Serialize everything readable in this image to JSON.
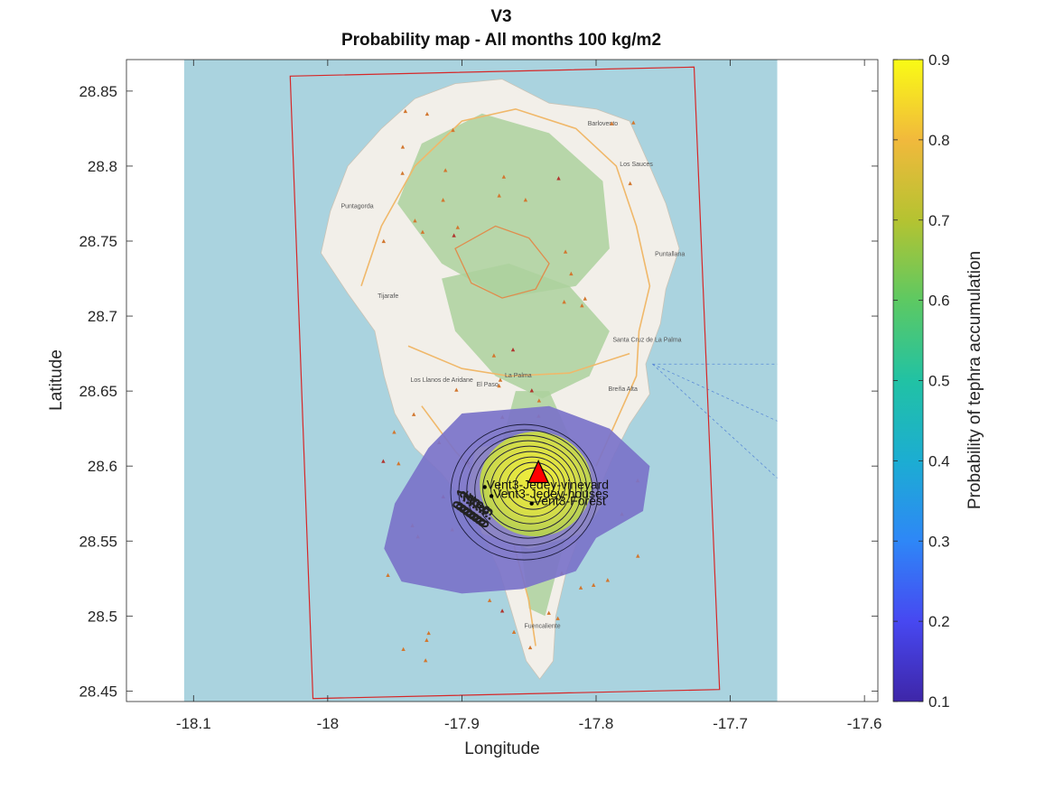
{
  "figure": {
    "title_line1": "V3",
    "title_line2": "Probability map - All months 100 kg/m2"
  },
  "axes": {
    "xlabel": "Longitude",
    "ylabel": "Latitude",
    "xlim": [
      -18.15,
      -17.59
    ],
    "ylim": [
      28.443,
      28.871
    ],
    "xticks": [
      -18.1,
      -18,
      -17.9,
      -17.8,
      -17.7,
      -17.6
    ],
    "xtick_labels": [
      "-18.1",
      "-18",
      "-17.9",
      "-17.8",
      "-17.7",
      "-17.6"
    ],
    "yticks": [
      28.45,
      28.5,
      28.55,
      28.6,
      28.65,
      28.7,
      28.75,
      28.8,
      28.85
    ],
    "ytick_labels": [
      "28.45",
      "28.5",
      "28.55",
      "28.6",
      "28.65",
      "28.7",
      "28.75",
      "28.8",
      "28.85"
    ],
    "grid": false
  },
  "basemap": {
    "sea_color": "#aad3df",
    "land_color": "#f2efe9",
    "forest_color": "#add19e",
    "road_color": "#f0b86a",
    "sea_extent_lon": [
      -18.107,
      -17.665
    ],
    "town_labels": [
      {
        "text": "Santa Cruz de La Palma",
        "lon": -17.762,
        "lat": 28.683
      },
      {
        "text": "Los Llanos de Aridane",
        "lon": -17.915,
        "lat": 28.656
      },
      {
        "text": "La Palma",
        "lon": -17.858,
        "lat": 28.659
      },
      {
        "text": "El Paso",
        "lon": -17.881,
        "lat": 28.653
      },
      {
        "text": "Tijarafe",
        "lon": -17.955,
        "lat": 28.712
      },
      {
        "text": "Puntagorda",
        "lon": -17.978,
        "lat": 28.772
      },
      {
        "text": "Barlovento",
        "lon": -17.795,
        "lat": 28.827
      },
      {
        "text": "Los Sauces",
        "lon": -17.77,
        "lat": 28.8
      },
      {
        "text": "Puntallana",
        "lon": -17.745,
        "lat": 28.74
      },
      {
        "text": "Breña Alta",
        "lon": -17.78,
        "lat": 28.65
      },
      {
        "text": "Fuencaliente",
        "lon": -17.84,
        "lat": 28.492
      }
    ]
  },
  "domain_box": {
    "color": "#d62728",
    "corners": [
      [
        -18.028,
        28.86
      ],
      [
        -17.727,
        28.866
      ],
      [
        -17.708,
        28.451
      ],
      [
        -18.011,
        28.445
      ]
    ]
  },
  "probability_field": {
    "center_lon": -17.845,
    "center_lat": 28.588,
    "outer_color": "#7b73c9",
    "inner_color": "#e2e34a",
    "contour_levels": [
      0.1,
      0.2,
      0.3,
      0.4,
      0.5,
      0.6,
      0.7,
      0.8,
      0.9
    ]
  },
  "vent": {
    "lon": -17.843,
    "lat": 28.595,
    "color": "#ff0000"
  },
  "targets": [
    {
      "label": "Vent3-Jedey-vineyard",
      "lon": -17.883,
      "lat": 28.586
    },
    {
      "label": "Vent3-Jedey-houses",
      "lon": -17.878,
      "lat": 28.58
    },
    {
      "label": "Vent3-Forest",
      "lon": -17.848,
      "lat": 28.575
    }
  ],
  "colorbar": {
    "label": "Probability of tephra accumulation",
    "min": 0.1,
    "max": 0.9,
    "ticks": [
      0.1,
      0.2,
      0.3,
      0.4,
      0.5,
      0.6,
      0.7,
      0.8,
      0.9
    ],
    "tick_labels": [
      "0.1",
      "0.2",
      "0.3",
      "0.4",
      "0.5",
      "0.6",
      "0.7",
      "0.8",
      "0.9"
    ],
    "colormap": [
      "#3e26a8",
      "#4748f1",
      "#2e87f7",
      "#1cadd2",
      "#21c2a4",
      "#5dc962",
      "#b5c331",
      "#f1b93c",
      "#f9fb15"
    ]
  }
}
